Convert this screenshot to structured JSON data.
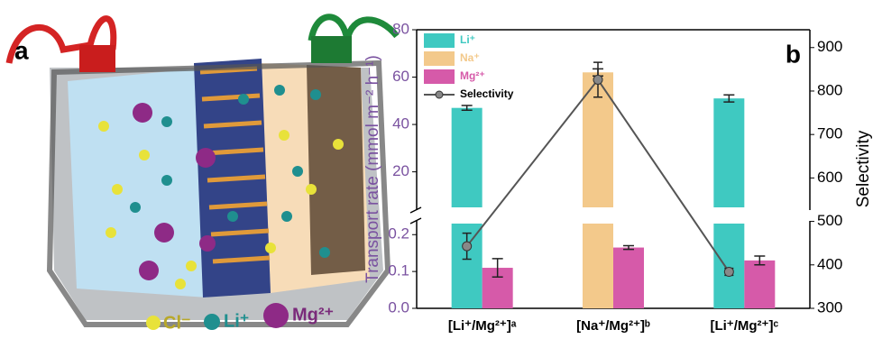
{
  "panel_a": {
    "label": "a",
    "legend": [
      "Cl⁻",
      "Li⁺",
      "Mg²⁺"
    ]
  },
  "chart_data": {
    "type": "bar",
    "panel_label": "b",
    "categories": [
      "[Li⁺/Mg²⁺]ᵃ",
      "[Na⁺/Mg²⁺]ᵇ",
      "[Li⁺/Mg²⁺]ᶜ"
    ],
    "ylabel": "Transport rate (mmol m⁻² h⁻¹)",
    "y2label": "Selectivity",
    "ylim": [
      0,
      0.23
    ],
    "yticks": [
      0.0,
      0.1,
      0.2
    ],
    "ylim_upper": [
      5,
      80
    ],
    "yticks_upper": [
      20,
      40,
      60,
      80
    ],
    "y2lim": [
      300,
      941
    ],
    "y2ticks": [
      300,
      400,
      500,
      600,
      700,
      800,
      900
    ],
    "yaxis_break": true,
    "legend_position": "upper left",
    "series": [
      {
        "name": "Li⁺",
        "color": "#3fc9c1",
        "values": [
          47,
          null,
          51
        ],
        "errors": [
          1,
          null,
          1.5
        ]
      },
      {
        "name": "Na⁺",
        "color": "#f3c98b",
        "values": [
          null,
          62,
          null
        ],
        "errors": [
          null,
          1.5,
          null
        ]
      },
      {
        "name": "Mg²⁺",
        "color": "#d65aa9",
        "values": [
          0.11,
          0.165,
          0.13
        ],
        "errors": [
          0.025,
          0.005,
          0.012
        ]
      },
      {
        "name": "Selectivity",
        "color": "#555555",
        "axis": "y2",
        "line": true,
        "values": [
          443,
          826,
          384
        ],
        "errors": [
          30,
          40,
          8
        ]
      }
    ]
  }
}
